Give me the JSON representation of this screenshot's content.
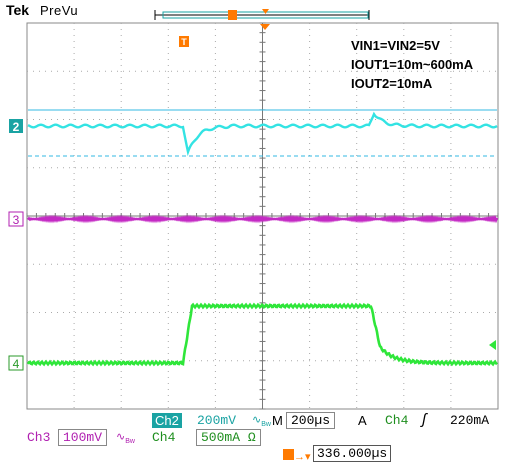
{
  "header": {
    "brand": "Tek",
    "mode": "PreVu"
  },
  "annotations": {
    "line1": "VIN1=VIN2=5V",
    "line2": "IOUT1=10m~600mA",
    "line3": "IOUT2=10mA"
  },
  "markers": {
    "trigger_letter": "T",
    "ch2": "2",
    "ch3": "3",
    "ch4": "4"
  },
  "status": {
    "ch2_label": "Ch2",
    "ch2_scale": "200mV",
    "ch2_coupling_icon": "ac-bw-icon",
    "timebase_label": "M",
    "timebase_value": "200µs",
    "trigger_mode": "A",
    "trigger_source": "Ch4",
    "trigger_slope": "ʃ",
    "trigger_level": "220mA",
    "ch3_label": "Ch3",
    "ch3_scale": "100mV",
    "ch3_coupling_icon": "ac-bw-icon",
    "ch4_label": "Ch4",
    "ch4_scale": "500mA",
    "ch4_unit_suffix": "Ω",
    "trigger_position": "336.000µs"
  },
  "colors": {
    "ch2": "#33e3e3",
    "ch3": "#c42ac4",
    "ch4": "#2fe63a",
    "trigger": "#ff7a00",
    "grid": "#9a9a9a"
  }
}
